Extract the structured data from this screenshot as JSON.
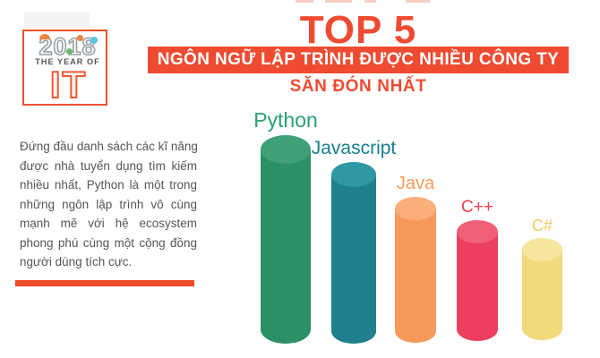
{
  "logo": {
    "year": "2018",
    "tagline": "THE YEAR OF",
    "acronym": "IT",
    "border_color": "#e9512e",
    "accent_colors": {
      "digit2_swoosh": "#f0823f",
      "digit0_dot": "#f0823f",
      "digit1_dot": "#6cb86a",
      "digit8_dot": "#5bc6dd"
    }
  },
  "header": {
    "top_title": "TOP 5",
    "banner_text": "NGÔN NGỮ LẬP TRÌNH ĐƯỢC NHIỀU CÔNG TY",
    "sub_banner_text": "SĂN ĐÓN NHẤT",
    "accent_color": "#ee4b31",
    "banner_text_color": "#ffffff"
  },
  "intro": {
    "lines": [
      "Đứng đầu danh sách các kĩ năng",
      "được nhà tuyển dụng tìm kiếm",
      "nhiều nhất, Python là một trong",
      "những ngôn lập trình vô cùng",
      "mạnh mẽ với hệ ecosystem",
      "phong phú cùng một cộng đồng",
      "người dùng tích cực."
    ],
    "text_color": "#55565a",
    "divider_color": "#ef4b26"
  },
  "chart_data": {
    "type": "bar",
    "subtype": "3d-cylinder",
    "title": "TOP 5 ngôn ngữ lập trình được nhiều công ty săn đón nhất",
    "categories": [
      "Python",
      "Javascript",
      "Java",
      "C++",
      "C#"
    ],
    "values": [
      100,
      87,
      70,
      58,
      49
    ],
    "values_note": "relative bar heights in % of tallest bar; chart shows ranking only, no numeric axis or value labels",
    "xlabel": "",
    "ylabel": "",
    "grid": false,
    "legend_position": "category labels above each cylinder",
    "series_colors": [
      {
        "label": "#2aa06f",
        "body": "#2b9066",
        "top": "#41a078"
      },
      {
        "label": "#177f8e",
        "body": "#1f7f8c",
        "top": "#2e98a3"
      },
      {
        "label": "#f99b5d",
        "body": "#f8995c",
        "top": "#fbaf7a"
      },
      {
        "label": "#f2414f",
        "body": "#ec3e5e",
        "top": "#ef6078"
      },
      {
        "label": "#efcb64",
        "body": "#f2d97d",
        "top": "#f6e59d"
      }
    ]
  }
}
